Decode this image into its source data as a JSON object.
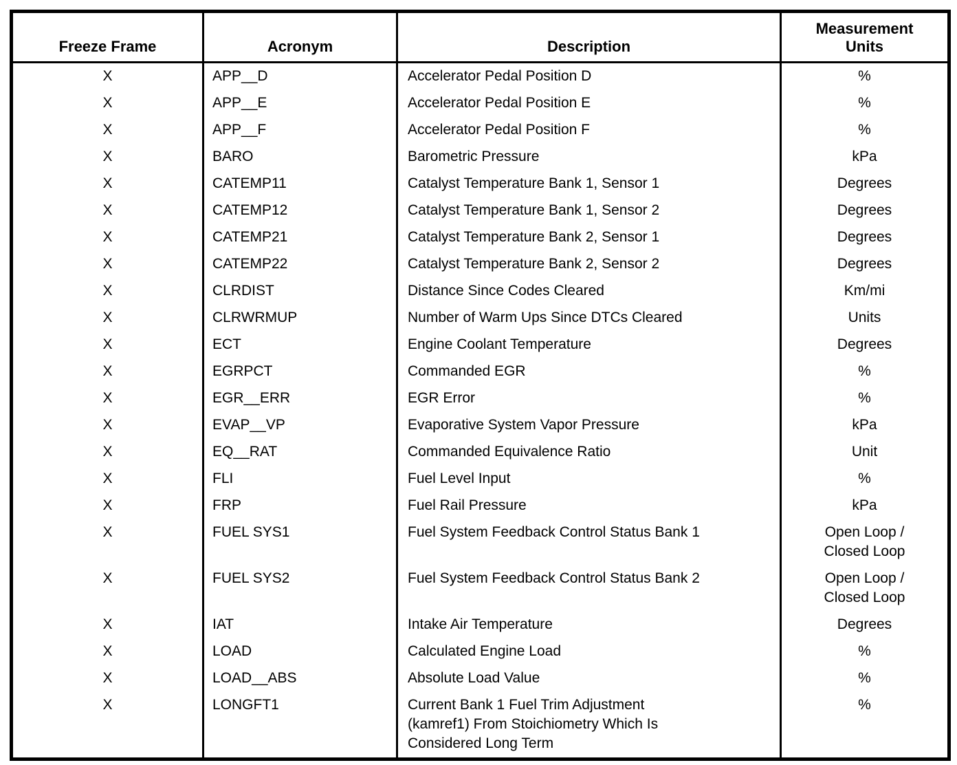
{
  "table": {
    "headers": {
      "freeze_frame": "Freeze Frame",
      "acronym": "Acronym",
      "description": "Description",
      "units": "Measurement\nUnits"
    },
    "rows": [
      {
        "freeze_frame": "X",
        "acronym": "APP__D",
        "description": "Accelerator Pedal Position D",
        "units": "%"
      },
      {
        "freeze_frame": "X",
        "acronym": "APP__E",
        "description": "Accelerator Pedal Position E",
        "units": "%"
      },
      {
        "freeze_frame": "X",
        "acronym": "APP__F",
        "description": "Accelerator Pedal Position F",
        "units": "%"
      },
      {
        "freeze_frame": "X",
        "acronym": "BARO",
        "description": "Barometric Pressure",
        "units": "kPa"
      },
      {
        "freeze_frame": "X",
        "acronym": "CATEMP11",
        "description": "Catalyst Temperature Bank 1, Sensor 1",
        "units": "Degrees"
      },
      {
        "freeze_frame": "X",
        "acronym": "CATEMP12",
        "description": "Catalyst Temperature Bank 1, Sensor 2",
        "units": "Degrees"
      },
      {
        "freeze_frame": "X",
        "acronym": "CATEMP21",
        "description": "Catalyst Temperature Bank 2, Sensor 1",
        "units": "Degrees"
      },
      {
        "freeze_frame": "X",
        "acronym": "CATEMP22",
        "description": "Catalyst Temperature Bank 2, Sensor 2",
        "units": "Degrees"
      },
      {
        "freeze_frame": "X",
        "acronym": "CLRDIST",
        "description": "Distance Since Codes Cleared",
        "units": "Km/mi"
      },
      {
        "freeze_frame": "X",
        "acronym": "CLRWRMUP",
        "description": "Number of Warm Ups Since DTCs Cleared",
        "units": "Units"
      },
      {
        "freeze_frame": "X",
        "acronym": "ECT",
        "description": "Engine Coolant Temperature",
        "units": "Degrees"
      },
      {
        "freeze_frame": "X",
        "acronym": "EGRPCT",
        "description": "Commanded EGR",
        "units": "%"
      },
      {
        "freeze_frame": "X",
        "acronym": "EGR__ERR",
        "description": "EGR Error",
        "units": "%"
      },
      {
        "freeze_frame": "X",
        "acronym": "EVAP__VP",
        "description": "Evaporative System Vapor Pressure",
        "units": "kPa"
      },
      {
        "freeze_frame": "X",
        "acronym": "EQ__RAT",
        "description": "Commanded Equivalence Ratio",
        "units": "Unit"
      },
      {
        "freeze_frame": "X",
        "acronym": "FLI",
        "description": "Fuel Level Input",
        "units": "%"
      },
      {
        "freeze_frame": "X",
        "acronym": "FRP",
        "description": "Fuel Rail Pressure",
        "units": "kPa"
      },
      {
        "freeze_frame": "X",
        "acronym": "FUEL SYS1",
        "description": "Fuel System Feedback Control Status Bank 1",
        "units": "Open Loop /\nClosed Loop"
      },
      {
        "freeze_frame": "X",
        "acronym": "FUEL SYS2",
        "description": "Fuel System Feedback Control Status Bank 2",
        "units": "Open Loop /\nClosed Loop"
      },
      {
        "freeze_frame": "X",
        "acronym": "IAT",
        "description": "Intake Air Temperature",
        "units": "Degrees"
      },
      {
        "freeze_frame": "X",
        "acronym": "LOAD",
        "description": "Calculated Engine Load",
        "units": "%"
      },
      {
        "freeze_frame": "X",
        "acronym": "LOAD__ABS",
        "description": "Absolute Load Value",
        "units": "%"
      },
      {
        "freeze_frame": "X",
        "acronym": "LONGFT1",
        "description": "Current Bank 1 Fuel Trim Adjustment\n(kamref1) From Stoichiometry Which Is\nConsidered Long Term",
        "units": "%"
      }
    ]
  }
}
